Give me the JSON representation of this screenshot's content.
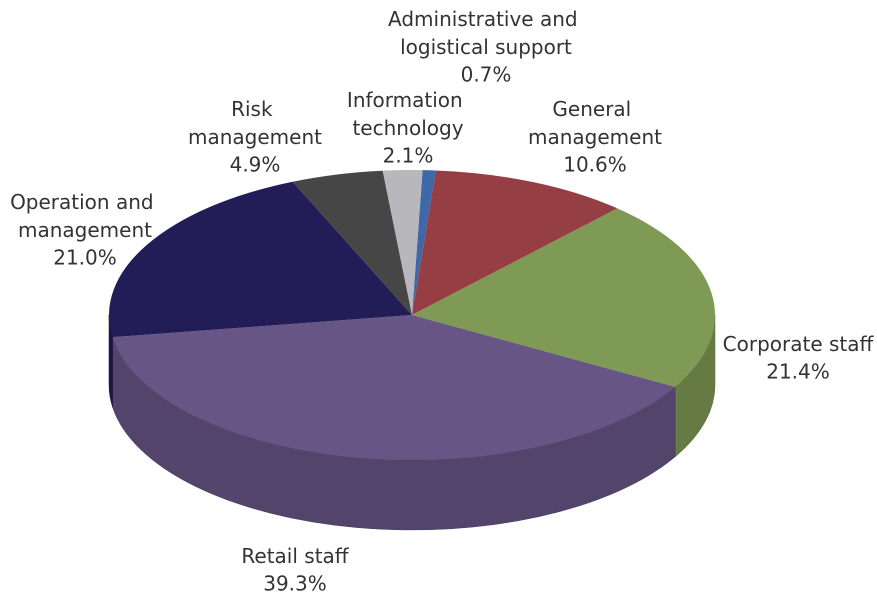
{
  "chart_data": {
    "type": "pie",
    "categories": [
      "Administrative and logistical support",
      "General management",
      "Corporate staff",
      "Retail staff",
      "Operation and management",
      "Risk management",
      "Information technology"
    ],
    "values": [
      0.7,
      10.6,
      21.4,
      39.3,
      21.0,
      4.9,
      2.1
    ],
    "value_labels": [
      "0.7%",
      "10.6%",
      "21.4%",
      "39.3%",
      "21.0%",
      "4.9%",
      "2.1%"
    ],
    "colors": [
      "#3f68a8",
      "#953f44",
      "#7f9a55",
      "#675585",
      "#221c57",
      "#464646",
      "#b8b8bc"
    ]
  }
}
